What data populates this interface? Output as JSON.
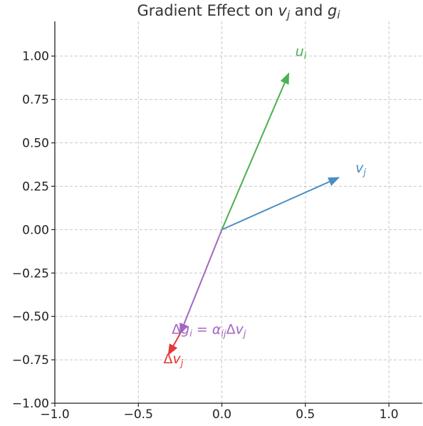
{
  "chart_data": {
    "type": "vector_field",
    "title_parts": [
      {
        "text": "Gradient Effect on ",
        "italic": false
      },
      {
        "text": "v",
        "italic": true
      },
      {
        "text": "j",
        "italic": true,
        "sub": true
      },
      {
        "text": " and ",
        "italic": false
      },
      {
        "text": "g",
        "italic": true
      },
      {
        "text": "i",
        "italic": true,
        "sub": true
      }
    ],
    "xlim": [
      -1.0,
      1.2
    ],
    "ylim": [
      -1.0,
      1.2
    ],
    "xticks": [
      -1.0,
      -0.5,
      0.0,
      0.5,
      1.0
    ],
    "xtick_labels": [
      "−1.0",
      "−0.5",
      "0.0",
      "0.5",
      "1.0"
    ],
    "yticks": [
      -1.0,
      -0.75,
      -0.5,
      -0.25,
      0.0,
      0.25,
      0.5,
      0.75,
      1.0
    ],
    "ytick_labels": [
      "−1.00",
      "−0.75",
      "−0.50",
      "−0.25",
      "0.00",
      "0.25",
      "0.50",
      "0.75",
      "1.00"
    ],
    "grid": true,
    "vectors": [
      {
        "name": "u_i",
        "start": [
          0,
          0
        ],
        "end": [
          0.4,
          0.9
        ],
        "color": "#4caf50",
        "label_at": [
          0.44,
          1.0
        ],
        "label_parts": [
          {
            "text": "u",
            "italic": true
          },
          {
            "text": "i",
            "italic": true,
            "sub": true
          }
        ]
      },
      {
        "name": "v_j",
        "start": [
          0,
          0
        ],
        "end": [
          0.7,
          0.3
        ],
        "color": "#4a8fc4",
        "label_at": [
          0.8,
          0.33
        ],
        "label_parts": [
          {
            "text": "v",
            "italic": true
          },
          {
            "text": "j",
            "italic": true,
            "sub": true
          }
        ]
      },
      {
        "name": "delta_g_i",
        "start": [
          0,
          0
        ],
        "end": [
          -0.25,
          -0.6
        ],
        "color": "#a366c0",
        "label_at": [
          -0.3,
          -0.6
        ],
        "label_parts": [
          {
            "text": "Δ",
            "italic": false
          },
          {
            "text": "g",
            "italic": true
          },
          {
            "text": "i",
            "italic": true,
            "sub": true
          },
          {
            "text": " = ",
            "italic": false
          },
          {
            "text": "α",
            "italic": true
          },
          {
            "text": "ij",
            "italic": true,
            "sub": true
          },
          {
            "text": "Δ",
            "italic": false
          },
          {
            "text": "v",
            "italic": true
          },
          {
            "text": "j",
            "italic": true,
            "sub": true
          }
        ]
      },
      {
        "name": "delta_v_j",
        "start": [
          -0.25,
          -0.6
        ],
        "end": [
          -0.32,
          -0.72
        ],
        "color": "#e53935",
        "label_at": [
          -0.35,
          -0.77
        ],
        "label_parts": [
          {
            "text": "Δ",
            "italic": false
          },
          {
            "text": "v",
            "italic": true
          },
          {
            "text": "j",
            "italic": true,
            "sub": true
          }
        ]
      }
    ]
  }
}
